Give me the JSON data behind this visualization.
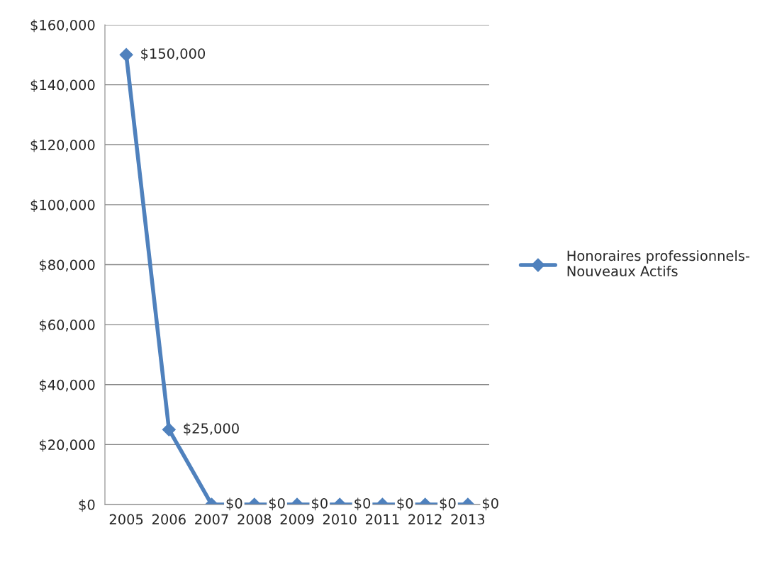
{
  "chart_data": {
    "type": "line",
    "categories": [
      "2005",
      "2006",
      "2007",
      "2008",
      "2009",
      "2010",
      "2011",
      "2012",
      "2013"
    ],
    "series": [
      {
        "name": "Honoraires professionnels-\nNouveaux Actifs",
        "color": "#4f81bd",
        "values": [
          150000,
          25000,
          0,
          0,
          0,
          0,
          0,
          0,
          0
        ],
        "value_labels": [
          "$150,000",
          "$25,000",
          "$0",
          "$0",
          "$0",
          "$0",
          "$0",
          "$0",
          "$0"
        ]
      }
    ],
    "ylim": [
      0,
      160000
    ],
    "yticks": [
      {
        "value": 0,
        "label": "$0"
      },
      {
        "value": 20000,
        "label": "$20,000"
      },
      {
        "value": 40000,
        "label": "$40,000"
      },
      {
        "value": 60000,
        "label": "$60,000"
      },
      {
        "value": 80000,
        "label": "$80,000"
      },
      {
        "value": 100000,
        "label": "$100,000"
      },
      {
        "value": 120000,
        "label": "$120,000"
      },
      {
        "value": 140000,
        "label": "$140,000"
      },
      {
        "value": 160000,
        "label": "$160,000"
      }
    ],
    "grid": "y",
    "legend": "right",
    "marker": "diamond",
    "line_style": "solid"
  }
}
